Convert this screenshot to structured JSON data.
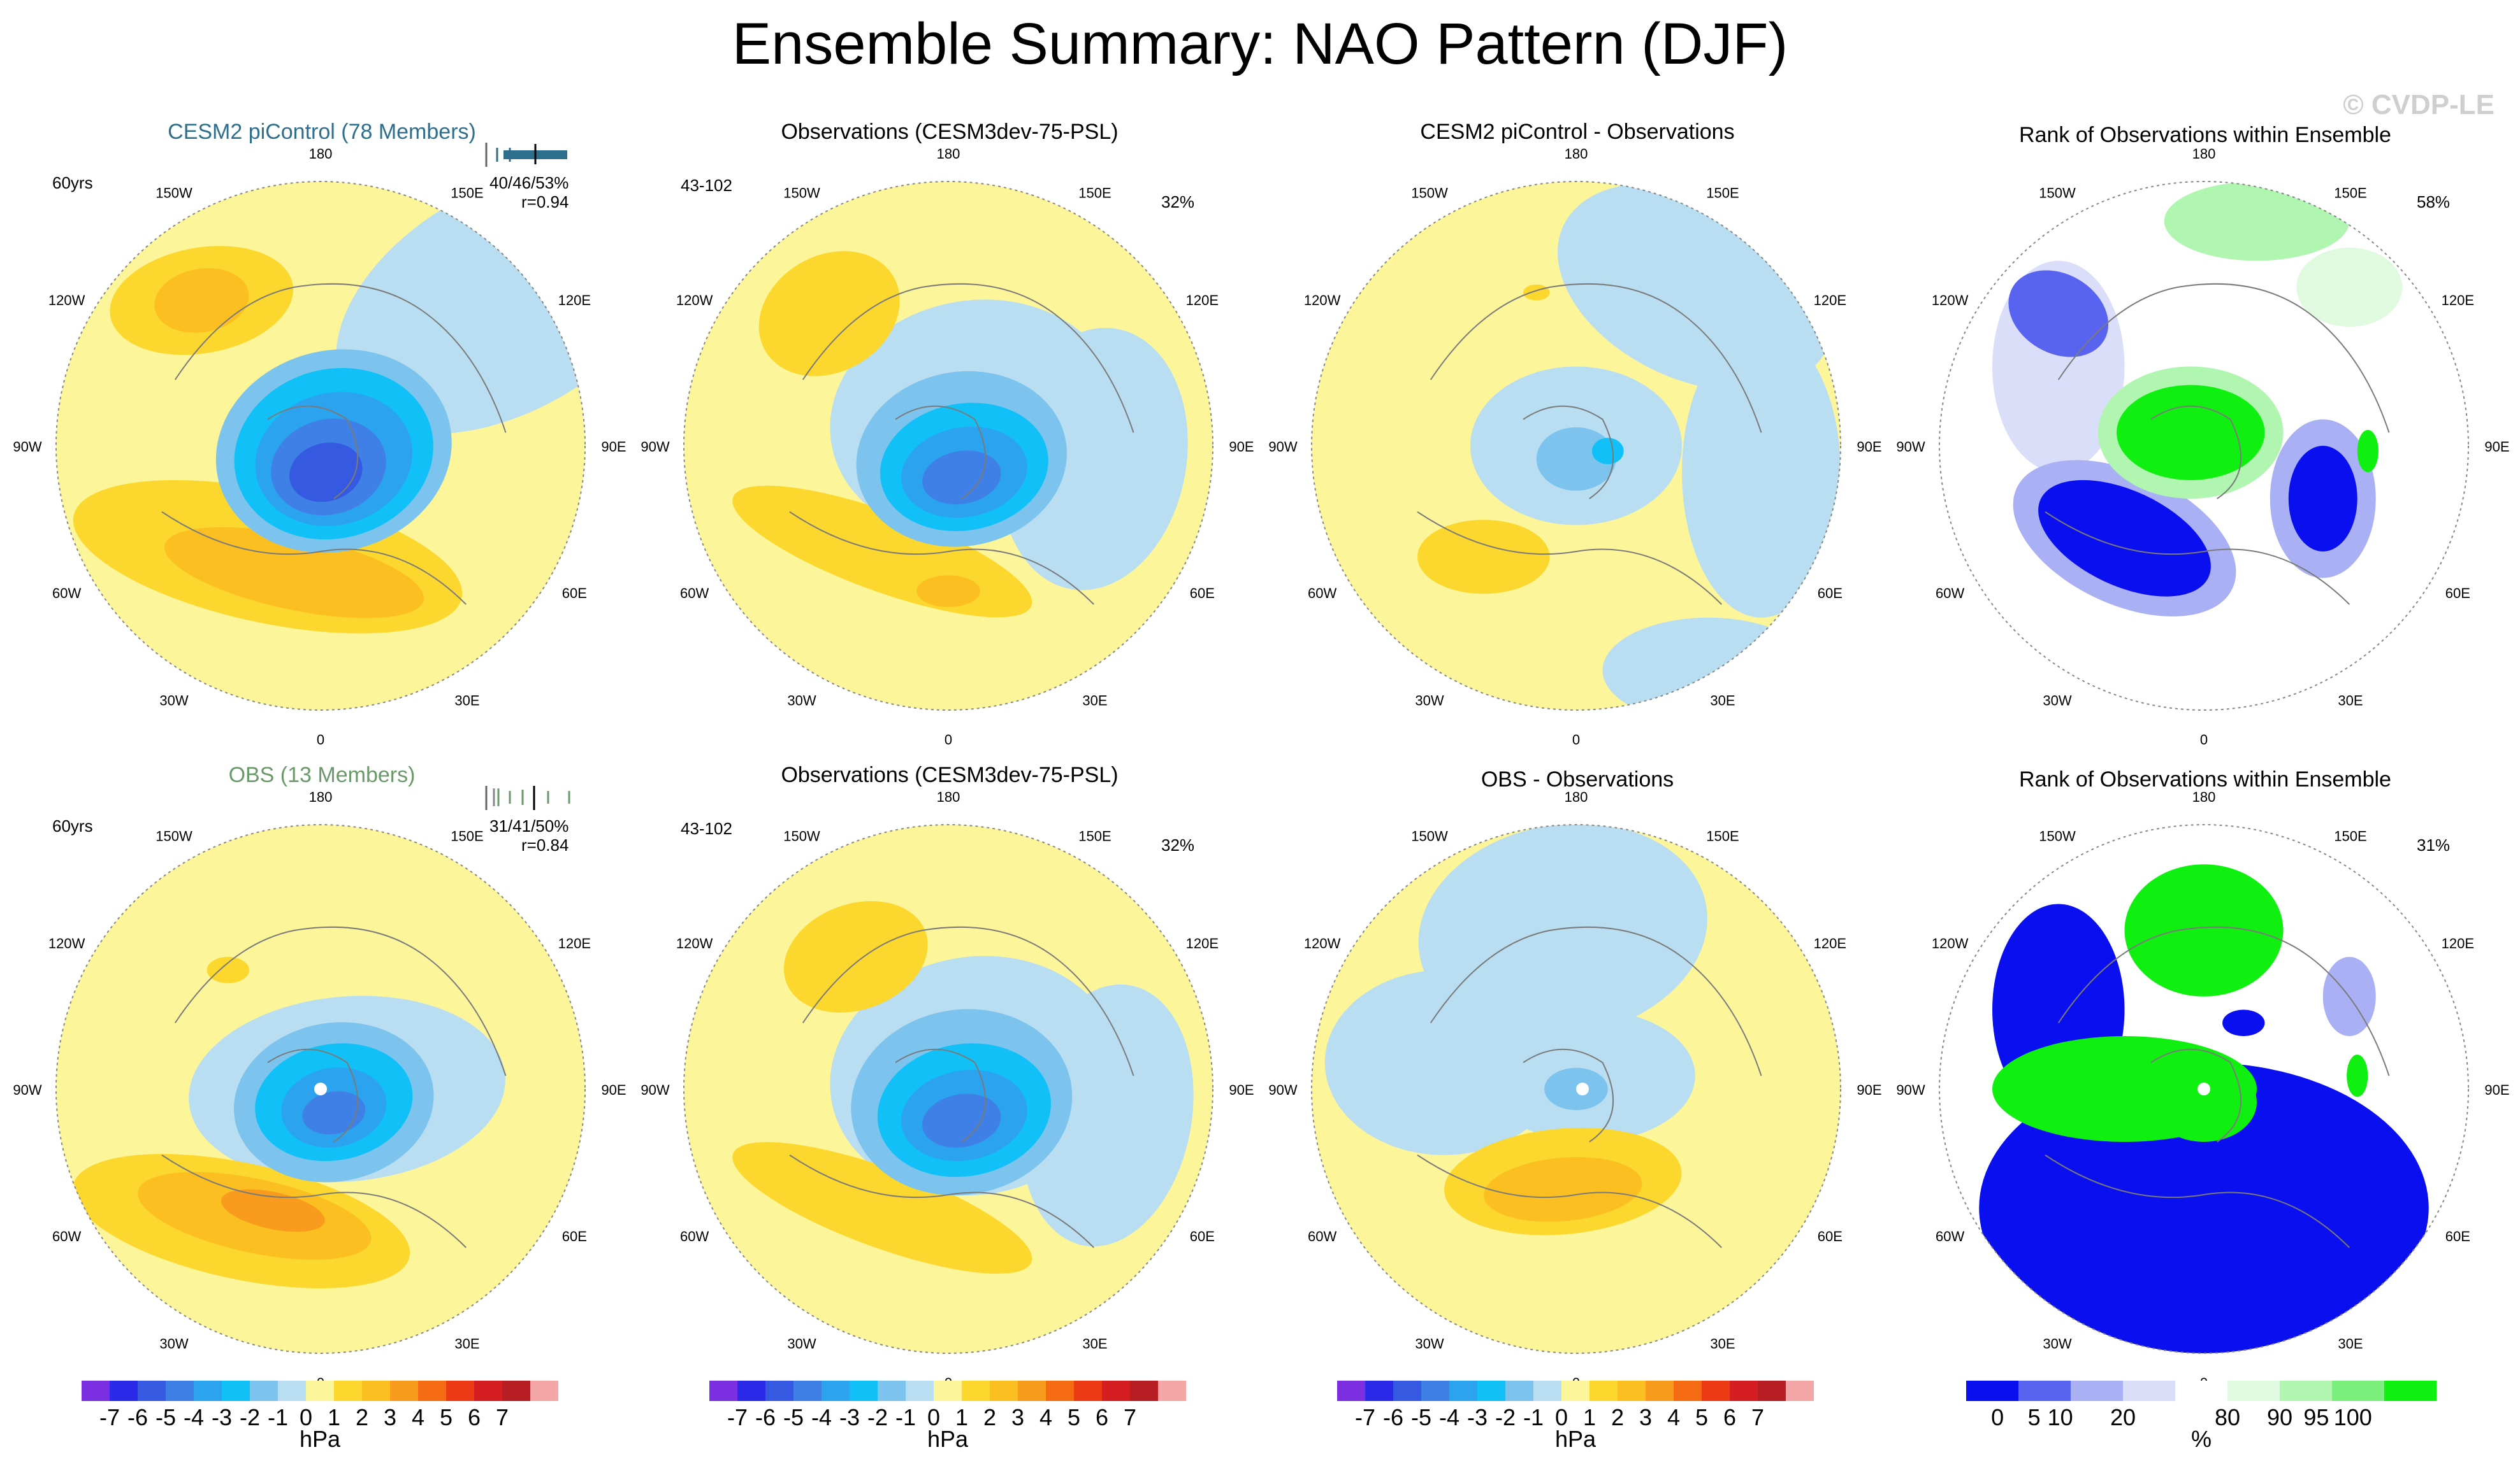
{
  "title": "Ensemble Summary: NAO Pattern (DJF)",
  "watermark": "© CVDP-LE",
  "lon_labels": {
    "top": "180",
    "bottom": "0",
    "w150": "150W",
    "e150": "150E",
    "w120": "120W",
    "e120": "120E",
    "w90": "90W",
    "e90": "90E",
    "w60": "60W",
    "e60": "60E",
    "w30": "30W",
    "e30": "30E"
  },
  "panels": {
    "r1c1": {
      "title": "CESM2 piControl (78 Members)",
      "note_left": "60yrs",
      "note_right_1": "40/46/53%",
      "note_right_2": "r=0.94"
    },
    "r1c2": {
      "title": "Observations (CESM3dev-75-PSL)",
      "note_left": "43-102",
      "note_right": "32%"
    },
    "r1c3": {
      "title": "CESM2 piControl - Observations"
    },
    "r1c4": {
      "title": "Rank of Observations within Ensemble",
      "note_right": "58%"
    },
    "r2c1": {
      "title": "OBS (13 Members)",
      "note_left": "60yrs",
      "note_right_1": "31/41/50%",
      "note_right_2": "r=0.84"
    },
    "r2c2": {
      "title": "Observations (CESM3dev-75-PSL)",
      "note_left": "43-102",
      "note_right": "32%"
    },
    "r2c3": {
      "title": "OBS - Observations"
    },
    "r2c4": {
      "title": "Rank of Observations within Ensemble",
      "note_right": "31%"
    }
  },
  "colors": {
    "title_cesm": "#2e6f8e",
    "title_obs": "#6a9a6a",
    "ocean_light_yellow": "#fdf59a",
    "pressure_scale": [
      "#7b2fe0",
      "#2a2ae8",
      "#3559e0",
      "#3f80e6",
      "#2ba3ee",
      "#11c0f7",
      "#7cc4ee",
      "#b9def2",
      "#fdf59a",
      "#fcd72d",
      "#fbbf22",
      "#f99b1c",
      "#f46b14",
      "#ec3b14",
      "#d41e22",
      "#b61e24",
      "#f5a7a7"
    ],
    "rank_scale": [
      "#0a0ff0",
      "#5863f0",
      "#aab0f4",
      "#dadef8",
      "#ffffff",
      "#e0fae0",
      "#b0f5b0",
      "#7bef7b",
      "#10f010"
    ]
  },
  "chart_data": [
    {
      "type": "heatmap",
      "title": "Ensemble Summary: NAO Pattern (DJF)",
      "projection": "polar stereographic, northern hemisphere",
      "variable": "sea level pressure regression",
      "units": "hPa",
      "colorbar_labels": [
        "-7",
        "-6",
        "-5",
        "-4",
        "-3",
        "-2",
        "-1",
        "0",
        "1",
        "2",
        "3",
        "4",
        "5",
        "6",
        "7"
      ],
      "colorbar_unit": "hPa",
      "panels": [
        "CESM2 piControl (78 Members)",
        "Observations (CESM3dev-75-PSL)",
        "CESM2 piControl - Observations",
        "OBS (13 Members)",
        "Observations (CESM3dev-75-PSL)",
        "OBS - Observations"
      ],
      "pattern_correlation": {
        "CESM2 piControl (78 Members)": 0.94,
        "OBS (13 Members)": 0.84
      },
      "ranges": {
        "CESM2 piControl (78 Members)": "40/46/53%",
        "OBS (13 Members)": "31/41/50%",
        "Observations (CESM3dev-75-PSL)": "32%"
      }
    },
    {
      "type": "heatmap",
      "title": "Rank of Observations within Ensemble",
      "units": "%",
      "colorbar_labels": [
        "0",
        "5",
        "10",
        "20",
        "80",
        "90",
        "95",
        "100"
      ],
      "colorbar_unit": "%",
      "values_percent": {
        "CESM2 piControl": 58,
        "OBS": 31
      }
    }
  ]
}
